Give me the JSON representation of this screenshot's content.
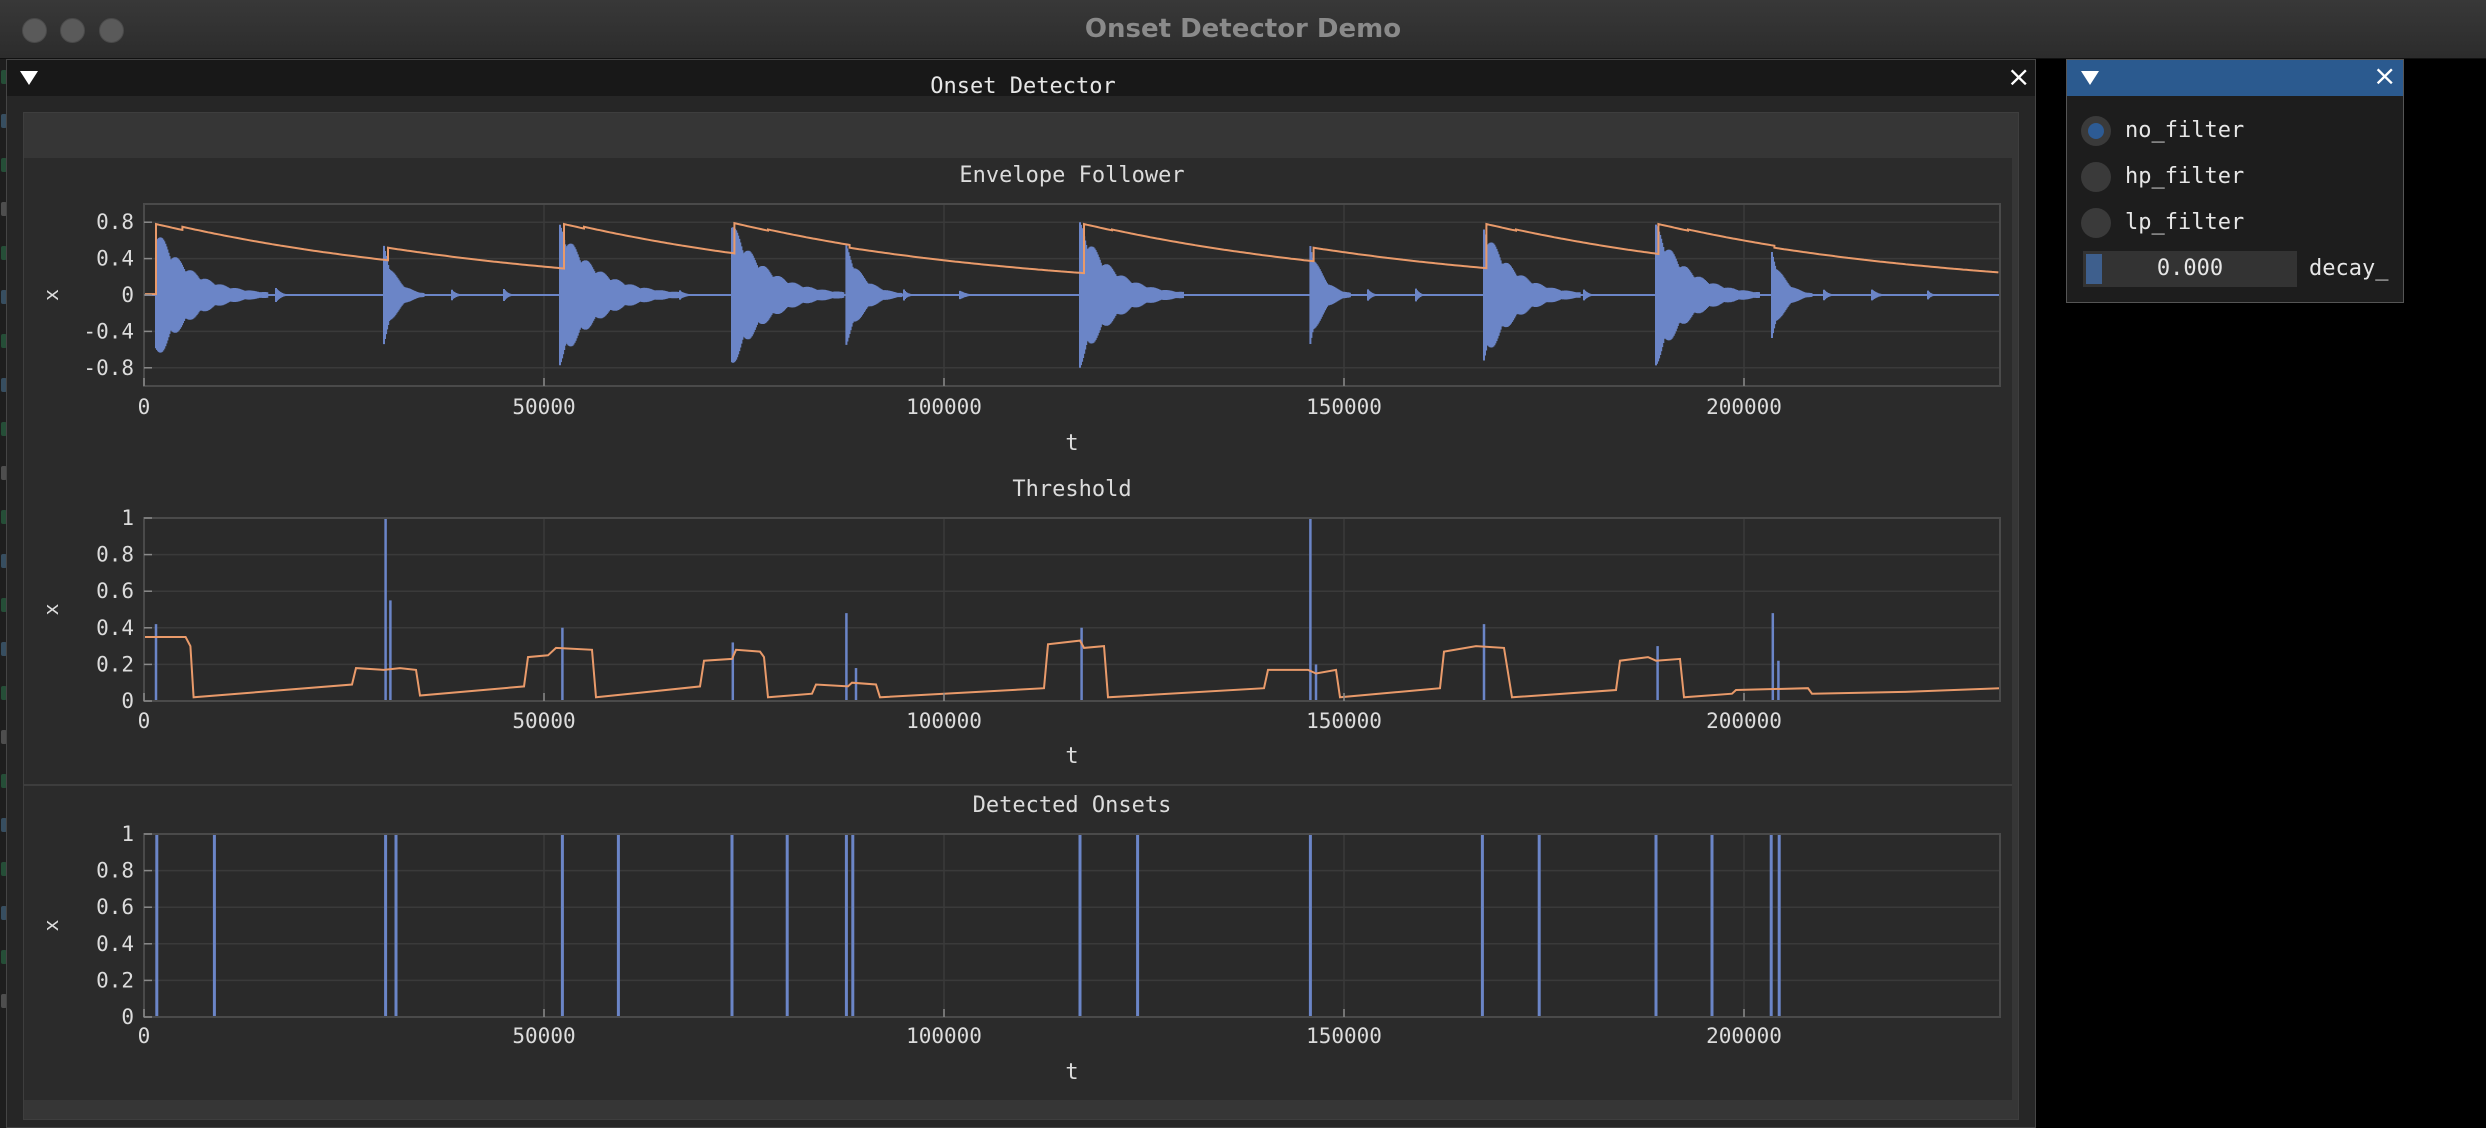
{
  "window": {
    "title": "Onset Detector Demo"
  },
  "main_panel": {
    "subplots_title": "Onset Detector"
  },
  "colors": {
    "signal": "#6b85c7",
    "envelope": "#e99a6a",
    "axis_frame": "#4a4a4a",
    "grid": "#3a3a3a",
    "accent": "#2b5a8f"
  },
  "controls": {
    "filters": [
      {
        "label": "no_filter",
        "checked": true
      },
      {
        "label": "hp_filter",
        "checked": false
      },
      {
        "label": "lp_filter",
        "checked": false
      }
    ],
    "decay_slider": {
      "value_text": "0.000",
      "value": 0.0,
      "label": "decay_"
    }
  },
  "chart_data": [
    {
      "type": "line",
      "title": "Envelope Follower",
      "xlabel": "t",
      "ylabel": "x",
      "xlim": [
        0,
        232000
      ],
      "ylim": [
        -1,
        1
      ],
      "xticks": [
        0,
        50000,
        100000,
        150000,
        200000
      ],
      "xtick_labels": [
        "0",
        "50000",
        "100000",
        "150000",
        "200000"
      ],
      "yticks": [
        0.8,
        0.4,
        0,
        -0.4,
        -0.8
      ],
      "ytick_labels": [
        "0.8",
        "0.4",
        "0",
        "-0.4",
        "-0.8"
      ],
      "grid": true,
      "series": [
        {
          "style": "oscillation",
          "color": "#6b85c7",
          "bursts": [
            {
              "t": 1500,
              "amp": 0.75,
              "len": 14000
            },
            {
              "t": 16500,
              "amp": 0.08,
              "len": 2000
            },
            {
              "t": 30000,
              "amp": 0.55,
              "len": 5000
            },
            {
              "t": 38500,
              "amp": 0.07,
              "len": 1500
            },
            {
              "t": 45000,
              "amp": 0.07,
              "len": 1500
            },
            {
              "t": 52000,
              "amp": 0.78,
              "len": 15000
            },
            {
              "t": 67000,
              "amp": 0.06,
              "len": 2000
            },
            {
              "t": 73500,
              "amp": 0.8,
              "len": 14000
            },
            {
              "t": 87800,
              "amp": 0.55,
              "len": 7000
            },
            {
              "t": 95000,
              "amp": 0.07,
              "len": 1500
            },
            {
              "t": 102000,
              "amp": 0.05,
              "len": 2500
            },
            {
              "t": 117000,
              "amp": 0.8,
              "len": 13000
            },
            {
              "t": 145800,
              "amp": 0.6,
              "len": 5000
            },
            {
              "t": 153000,
              "amp": 0.07,
              "len": 1500
            },
            {
              "t": 159000,
              "amp": 0.07,
              "len": 1500
            },
            {
              "t": 167500,
              "amp": 0.78,
              "len": 12000
            },
            {
              "t": 180000,
              "amp": 0.07,
              "len": 1500
            },
            {
              "t": 189000,
              "amp": 0.78,
              "len": 13000
            },
            {
              "t": 203500,
              "amp": 0.5,
              "len": 5000
            },
            {
              "t": 210000,
              "amp": 0.07,
              "len": 1500
            },
            {
              "t": 216000,
              "amp": 0.06,
              "len": 2500
            },
            {
              "t": 223000,
              "amp": 0.05,
              "len": 1500
            }
          ]
        },
        {
          "style": "envelope",
          "color": "#e99a6a",
          "initial": 0.0,
          "floor": 0.01,
          "decay_time": 38000,
          "peaks": [
            {
              "t": 1500,
              "v": 0.78
            },
            {
              "t": 4800,
              "v": 0.75
            },
            {
              "t": 30500,
              "v": 0.52
            },
            {
              "t": 52500,
              "v": 0.78
            },
            {
              "t": 55000,
              "v": 0.75
            },
            {
              "t": 73800,
              "v": 0.79
            },
            {
              "t": 78000,
              "v": 0.72
            },
            {
              "t": 88200,
              "v": 0.52
            },
            {
              "t": 117500,
              "v": 0.78
            },
            {
              "t": 121000,
              "v": 0.72
            },
            {
              "t": 146200,
              "v": 0.52
            },
            {
              "t": 167800,
              "v": 0.78
            },
            {
              "t": 171500,
              "v": 0.72
            },
            {
              "t": 189300,
              "v": 0.78
            },
            {
              "t": 193000,
              "v": 0.72
            },
            {
              "t": 203800,
              "v": 0.52
            }
          ]
        }
      ]
    },
    {
      "type": "line",
      "title": "Threshold",
      "xlabel": "t",
      "ylabel": "x",
      "xlim": [
        0,
        232000
      ],
      "ylim": [
        0,
        1
      ],
      "xticks": [
        0,
        50000,
        100000,
        150000,
        200000
      ],
      "xtick_labels": [
        "0",
        "50000",
        "100000",
        "150000",
        "200000"
      ],
      "yticks": [
        1,
        0.8,
        0.6,
        0.4,
        0.2,
        0
      ],
      "ytick_labels": [
        "1",
        "0.8",
        "0.6",
        "0.4",
        "0.2",
        "0"
      ],
      "grid": true,
      "series": [
        {
          "style": "spikes",
          "color": "#6b85c7",
          "points": [
            [
              1500,
              0.42
            ],
            [
              30200,
              1.0
            ],
            [
              30800,
              0.55
            ],
            [
              52300,
              0.4
            ],
            [
              73600,
              0.32
            ],
            [
              87800,
              0.48
            ],
            [
              89000,
              0.18
            ],
            [
              117200,
              0.4
            ],
            [
              145800,
              1.0
            ],
            [
              146500,
              0.2
            ],
            [
              167500,
              0.42
            ],
            [
              189200,
              0.3
            ],
            [
              203600,
              0.48
            ],
            [
              204300,
              0.22
            ]
          ]
        },
        {
          "style": "polyline",
          "color": "#e99a6a",
          "points": [
            [
              0,
              0.35
            ],
            [
              5200,
              0.35
            ],
            [
              5800,
              0.3
            ],
            [
              6200,
              0.02
            ],
            [
              26000,
              0.09
            ],
            [
              26500,
              0.18
            ],
            [
              30000,
              0.17
            ],
            [
              32000,
              0.18
            ],
            [
              34000,
              0.17
            ],
            [
              34500,
              0.03
            ],
            [
              47500,
              0.08
            ],
            [
              48000,
              0.24
            ],
            [
              50500,
              0.25
            ],
            [
              51500,
              0.29
            ],
            [
              56000,
              0.28
            ],
            [
              56500,
              0.02
            ],
            [
              69500,
              0.08
            ],
            [
              70000,
              0.22
            ],
            [
              73500,
              0.23
            ],
            [
              74000,
              0.28
            ],
            [
              77000,
              0.27
            ],
            [
              77500,
              0.24
            ],
            [
              78000,
              0.02
            ],
            [
              83500,
              0.04
            ],
            [
              84000,
              0.09
            ],
            [
              88000,
              0.08
            ],
            [
              88500,
              0.1
            ],
            [
              91500,
              0.09
            ],
            [
              92000,
              0.02
            ],
            [
              112500,
              0.07
            ],
            [
              113000,
              0.31
            ],
            [
              117000,
              0.33
            ],
            [
              117500,
              0.29
            ],
            [
              120000,
              0.3
            ],
            [
              120500,
              0.02
            ],
            [
              140000,
              0.07
            ],
            [
              140500,
              0.17
            ],
            [
              145500,
              0.17
            ],
            [
              146500,
              0.15
            ],
            [
              149000,
              0.17
            ],
            [
              149500,
              0.02
            ],
            [
              162000,
              0.07
            ],
            [
              162500,
              0.27
            ],
            [
              166500,
              0.3
            ],
            [
              170000,
              0.29
            ],
            [
              171000,
              0.02
            ],
            [
              184000,
              0.06
            ],
            [
              184500,
              0.22
            ],
            [
              188000,
              0.24
            ],
            [
              189000,
              0.22
            ],
            [
              192000,
              0.23
            ],
            [
              192500,
              0.02
            ],
            [
              198500,
              0.04
            ],
            [
              199000,
              0.06
            ],
            [
              208000,
              0.07
            ],
            [
              208500,
              0.04
            ],
            [
              220000,
              0.05
            ],
            [
              232000,
              0.07
            ]
          ]
        }
      ]
    },
    {
      "type": "bar",
      "title": "Detected Onsets",
      "xlabel": "t",
      "ylabel": "x",
      "xlim": [
        0,
        232000
      ],
      "ylim": [
        0,
        1
      ],
      "xticks": [
        0,
        50000,
        100000,
        150000,
        200000
      ],
      "xtick_labels": [
        "0",
        "50000",
        "100000",
        "150000",
        "200000"
      ],
      "yticks": [
        1,
        0.8,
        0.6,
        0.4,
        0.2,
        0
      ],
      "ytick_labels": [
        "1",
        "0.8",
        "0.6",
        "0.4",
        "0.2",
        "0"
      ],
      "grid": true,
      "series": [
        {
          "style": "impulses",
          "color": "#6b85c7",
          "x": [
            1600,
            8800,
            30200,
            31500,
            52300,
            59300,
            73500,
            80400,
            87800,
            88600,
            117000,
            124200,
            145800,
            167300,
            174400,
            189000,
            196000,
            203400,
            204400
          ],
          "values": [
            1,
            1,
            1,
            1,
            1,
            1,
            1,
            1,
            1,
            1,
            1,
            1,
            1,
            1,
            1,
            1,
            1,
            1,
            1
          ]
        }
      ]
    }
  ]
}
